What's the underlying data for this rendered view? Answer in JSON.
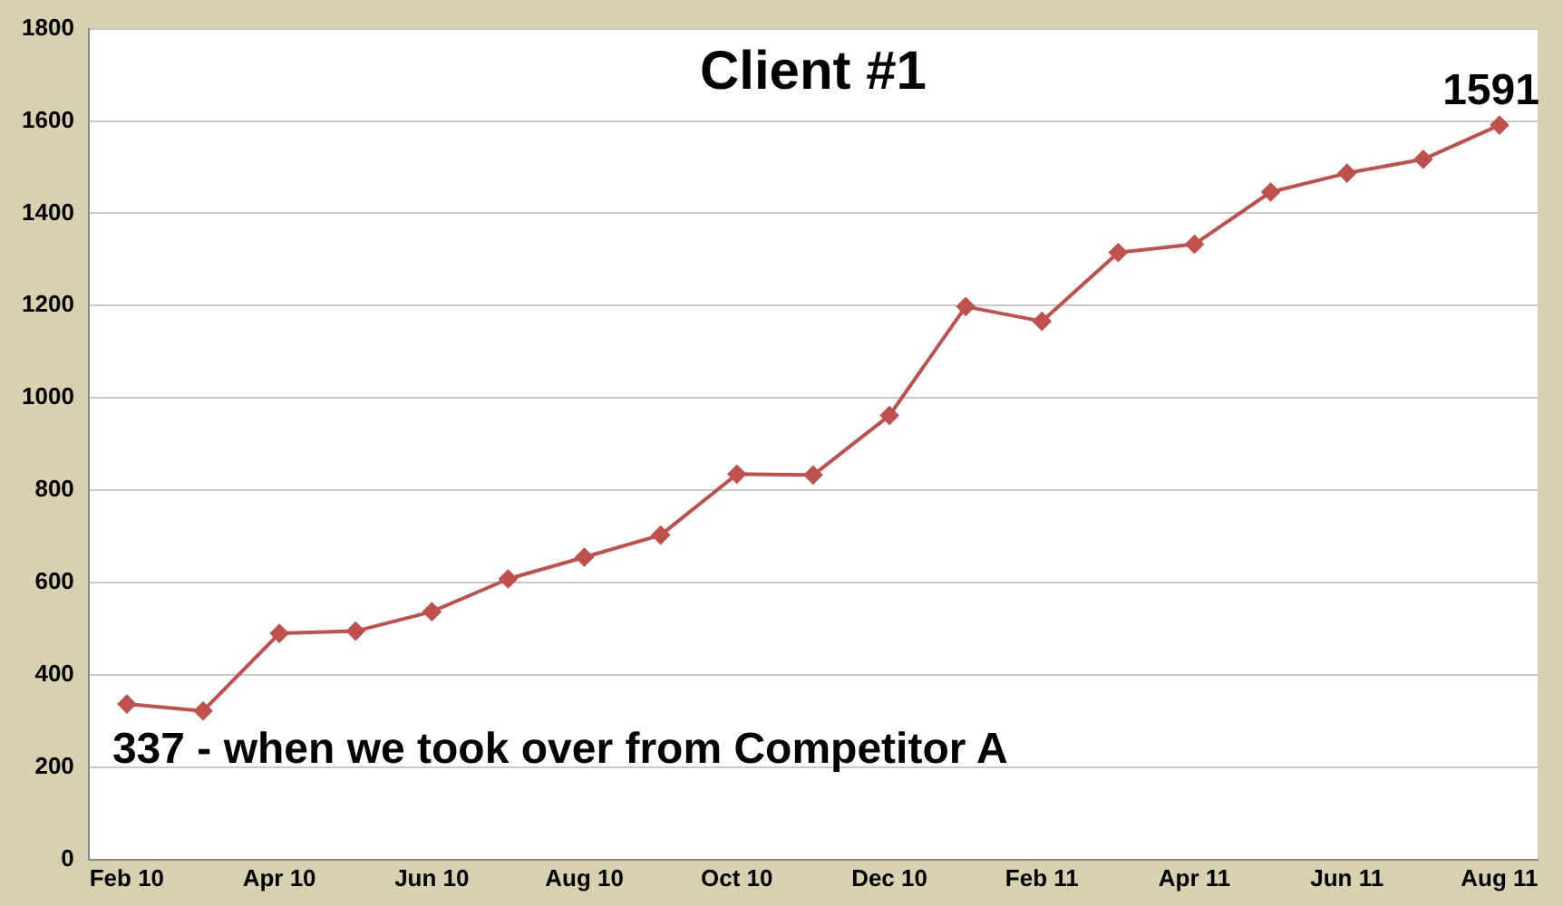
{
  "chart_data": {
    "type": "line",
    "title": "Client #1",
    "categories": [
      "Feb 10",
      null,
      "Apr 10",
      null,
      "Jun 10",
      null,
      "Aug 10",
      null,
      "Oct 10",
      null,
      "Dec 10",
      null,
      "Feb 11",
      null,
      "Apr 11",
      null,
      "Jun 11",
      null,
      "Aug 11"
    ],
    "series": [
      {
        "color": "#c0504d",
        "values": [
          337,
          322,
          490,
          495,
          537,
          608,
          655,
          703,
          835,
          833,
          962,
          1198,
          1166,
          1315,
          1333,
          1446,
          1487,
          1517,
          1591
        ]
      }
    ],
    "ylim": [
      0,
      1800
    ],
    "yticks": [
      0,
      200,
      400,
      600,
      800,
      1000,
      1200,
      1400,
      1600,
      1800
    ],
    "grid": "y",
    "marker": "diamond",
    "legend": false,
    "annotations": [
      {
        "text": "337 - when we took over from Competitor A",
        "x": "Feb 10",
        "y": 337
      },
      {
        "text": "1591",
        "x": "Aug 11",
        "y": 1591
      }
    ]
  }
}
